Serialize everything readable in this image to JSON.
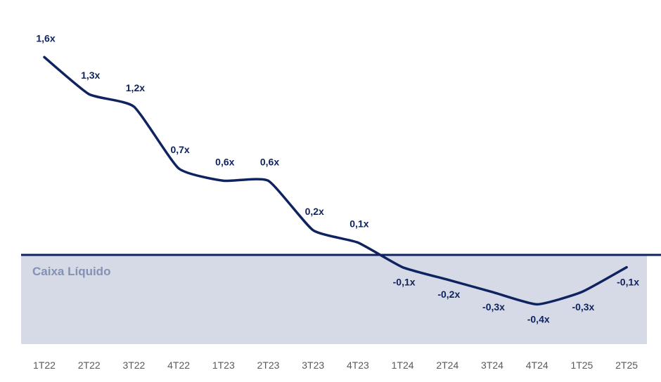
{
  "chart_data": {
    "type": "line",
    "categories": [
      "1T22",
      "2T22",
      "3T22",
      "4T22",
      "1T23",
      "2T23",
      "3T23",
      "4T23",
      "1T24",
      "2T24",
      "3T24",
      "4T24",
      "1T25",
      "2T25"
    ],
    "values": [
      1.6,
      1.3,
      1.2,
      0.7,
      0.6,
      0.6,
      0.2,
      0.1,
      -0.1,
      -0.2,
      -0.3,
      -0.4,
      -0.3,
      -0.1
    ],
    "value_labels": [
      "1,6x",
      "1,3x",
      "1,2x",
      "0,7x",
      "0,6x",
      "0,6x",
      "0,2x",
      "0,1x",
      "-0,1x",
      "-0,2x",
      "-0,3x",
      "-0,4x",
      "-0,3x",
      "-0,1x"
    ],
    "negative_region_label": "Caixa Líquido",
    "ylim": [
      -0.6,
      1.6
    ],
    "grid": false,
    "colors": {
      "line": "#0f2360",
      "baseline": "#0f2360",
      "negative_fill": "#d6dae6",
      "region_label": "#8391b4",
      "tick_text": "#5a5a5a"
    }
  }
}
